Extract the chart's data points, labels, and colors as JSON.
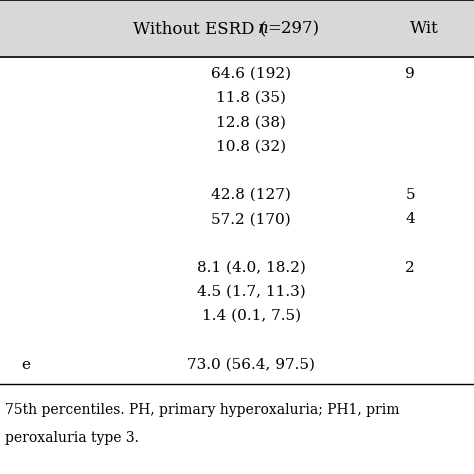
{
  "header_col1_pre": "Without ESRD (",
  "header_col1_italic": "n",
  "header_col1_post": "=297)",
  "header_col2": "Wit",
  "col1_data": [
    "64.6 (192)",
    "11.8 (35)",
    "12.8 (38)",
    "10.8 (32)",
    "",
    "42.8 (127)",
    "57.2 (170)",
    "",
    "8.1 (4.0, 18.2)",
    "4.5 (1.7, 11.3)",
    "1.4 (0.1, 7.5)",
    "",
    "73.0 (56.4, 97.5)"
  ],
  "col2_data": [
    "9",
    "",
    "",
    "",
    "",
    "5",
    "4",
    "",
    "2",
    "",
    "",
    "",
    ""
  ],
  "left_labels": [
    "",
    "",
    "",
    "",
    "",
    "",
    "",
    "",
    "",
    "",
    "",
    "",
    "e"
  ],
  "footer_line1": "75th percentiles. PH, primary hyperoxaluria; PH1, prim",
  "footer_line2": "peroxaluria type 3.",
  "bg_color": "#ffffff",
  "header_bg": "#d8d8d8",
  "line_color": "#000000",
  "font_size": 11,
  "header_font_size": 12,
  "footer_font_size": 10,
  "figsize": [
    4.74,
    4.74
  ],
  "dpi": 100
}
